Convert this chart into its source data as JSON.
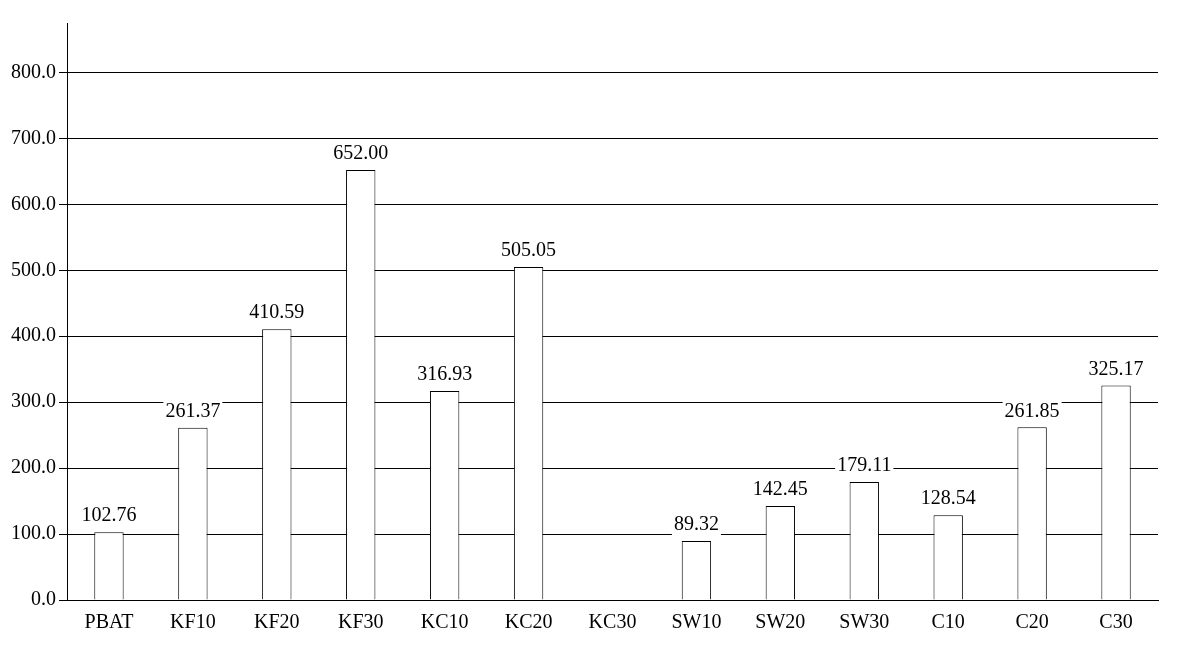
{
  "chart_data": {
    "type": "bar",
    "categories": [
      "PBAT",
      "KF10",
      "KF20",
      "KF30",
      "KC10",
      "KC20",
      "KC30",
      "SW10",
      "SW20",
      "SW30",
      "C10",
      "C20",
      "C30"
    ],
    "values": [
      102.76,
      261.37,
      410.59,
      652.0,
      316.93,
      505.05,
      null,
      89.32,
      142.45,
      179.11,
      128.54,
      261.85,
      325.17
    ],
    "value_labels": [
      "102.76",
      "261.37",
      "410.59",
      "652.00",
      "316.93",
      "505.05",
      null,
      "89.32",
      "142.45",
      "179.11",
      "128.54",
      "261.85",
      "325.17"
    ],
    "color": "#ffffff",
    "ylim": [
      0,
      875
    ],
    "yticks": [
      {
        "value": 0,
        "label": "0.0"
      },
      {
        "value": 100,
        "label": "100.0"
      },
      {
        "value": 200,
        "label": "200.0"
      },
      {
        "value": 300,
        "label": "300.0"
      },
      {
        "value": 400,
        "label": "400.0"
      },
      {
        "value": 500,
        "label": "500.0"
      },
      {
        "value": 600,
        "label": "600.0"
      },
      {
        "value": 700,
        "label": "700.0"
      },
      {
        "value": 800,
        "label": "800.0"
      }
    ],
    "grid": "y"
  }
}
